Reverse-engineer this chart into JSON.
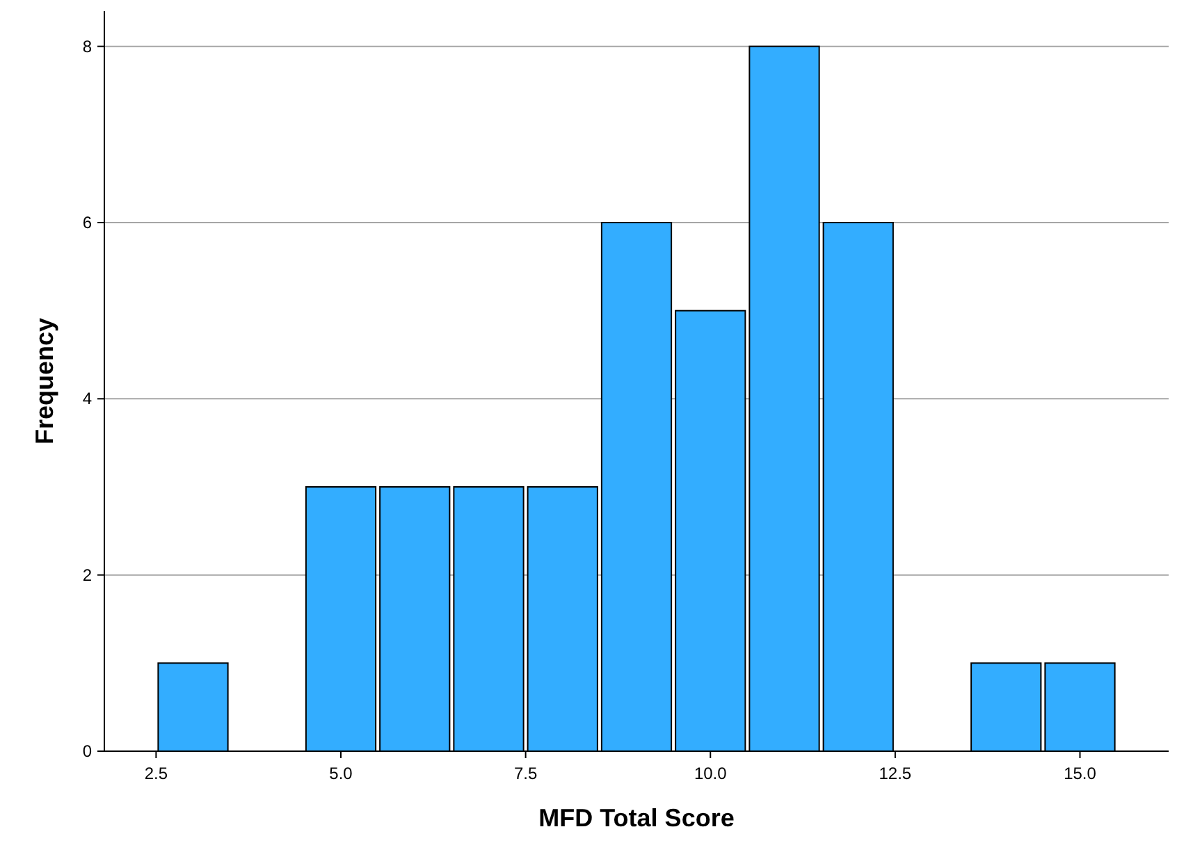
{
  "chart_data": {
    "type": "histogram",
    "xlabel": "MFD Total Score",
    "ylabel": "Frequency",
    "bins": [
      2.5,
      3.5,
      4.5,
      5.5,
      6.5,
      7.5,
      8.5,
      9.5,
      10.5,
      11.5,
      12.5,
      13.5,
      14.5,
      15.5
    ],
    "values": [
      1,
      0,
      3,
      3,
      3,
      3,
      6,
      5,
      8,
      6,
      0,
      1,
      1
    ],
    "color": "#33adff",
    "xlim": [
      1.8,
      16.2
    ],
    "xticks": [
      {
        "value": 2.5,
        "label": "2.5"
      },
      {
        "value": 5,
        "label": "5.0"
      },
      {
        "value": 7.5,
        "label": "7.5"
      },
      {
        "value": 10,
        "label": "10.0"
      },
      {
        "value": 12.5,
        "label": "12.5"
      },
      {
        "value": 15,
        "label": "15.0"
      }
    ],
    "ylim": [
      0,
      8.4
    ],
    "yticks": [
      0,
      2,
      4,
      6,
      8
    ],
    "grid": "y"
  }
}
